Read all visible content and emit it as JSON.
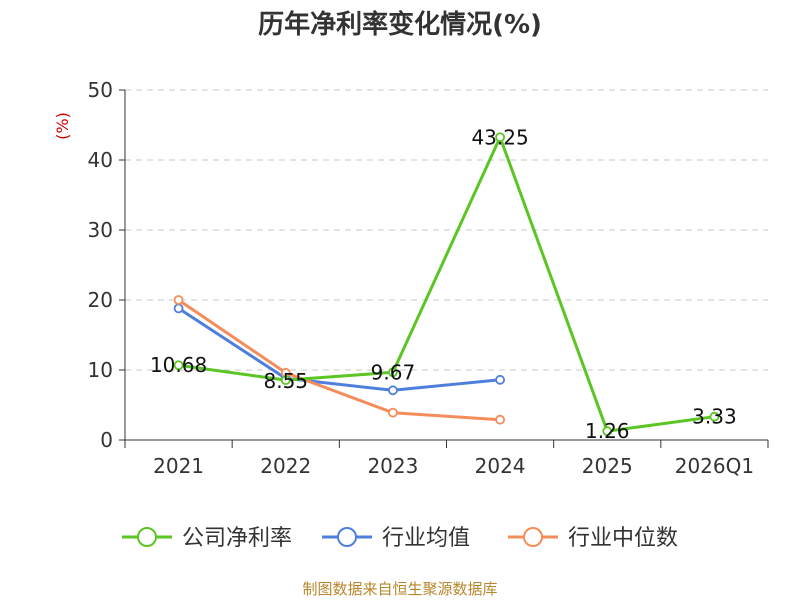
{
  "chart_data": {
    "type": "line",
    "title": "历年净利率变化情况(%)",
    "ylabel": "(%)",
    "categories": [
      "2021",
      "2022",
      "2023",
      "2024",
      "2025",
      "2026Q1"
    ],
    "ylim": [
      0,
      50
    ],
    "yticks": [
      "0",
      "10",
      "20",
      "30",
      "40",
      "50"
    ],
    "grid": true,
    "legend_position": "bottom",
    "series": [
      {
        "name": "公司净利率",
        "color": "#5bc623",
        "values": [
          10.68,
          8.55,
          9.67,
          43.25,
          1.26,
          3.33
        ],
        "labels": [
          "10.68",
          "8.55",
          "9.67",
          "43.25",
          "1.26",
          "3.33"
        ]
      },
      {
        "name": "行业均值",
        "color": "#4f7fdc",
        "values": [
          18.8,
          8.8,
          7.1,
          8.6,
          null,
          null
        ]
      },
      {
        "name": "行业中位数",
        "color": "#f58c5b",
        "values": [
          20.0,
          9.6,
          3.9,
          2.9,
          null,
          null
        ]
      }
    ]
  },
  "source": "制图数据来自恒生聚源数据库"
}
